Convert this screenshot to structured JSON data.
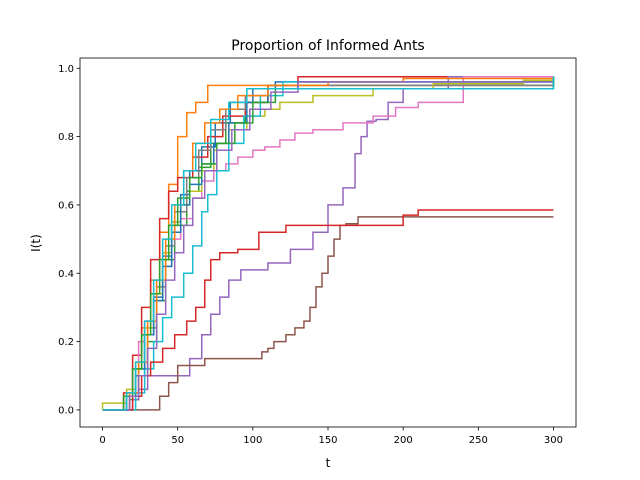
{
  "chart_data": {
    "type": "line",
    "title": "Proportion of Informed Ants",
    "xlabel": "t",
    "ylabel": "I(t)",
    "xlim": [
      -15,
      315
    ],
    "ylim": [
      -0.05,
      1.03
    ],
    "xticks": [
      0,
      50,
      100,
      150,
      200,
      250,
      300
    ],
    "yticks": [
      0.0,
      0.2,
      0.4,
      0.6,
      0.8,
      1.0
    ],
    "xtick_labels": [
      "0",
      "50",
      "100",
      "150",
      "200",
      "250",
      "300"
    ],
    "ytick_labels": [
      "0.0",
      "0.2",
      "0.4",
      "0.6",
      "0.8",
      "1.0"
    ],
    "grid": false,
    "legend": "none",
    "series": [
      {
        "color": "#1f77b4",
        "points": [
          [
            0,
            0
          ],
          [
            12,
            0
          ],
          [
            16,
            0.04
          ],
          [
            22,
            0.1
          ],
          [
            28,
            0.22
          ],
          [
            34,
            0.33
          ],
          [
            40,
            0.45
          ],
          [
            46,
            0.55
          ],
          [
            52,
            0.63
          ],
          [
            58,
            0.7
          ],
          [
            66,
            0.77
          ],
          [
            75,
            0.84
          ],
          [
            85,
            0.9
          ],
          [
            100,
            0.94
          ],
          [
            115,
            0.96
          ],
          [
            300,
            0.975
          ]
        ]
      },
      {
        "color": "#ff7f0e",
        "points": [
          [
            0,
            0
          ],
          [
            10,
            0
          ],
          [
            14,
            0.04
          ],
          [
            20,
            0.12
          ],
          [
            26,
            0.24
          ],
          [
            32,
            0.38
          ],
          [
            38,
            0.52
          ],
          [
            44,
            0.66
          ],
          [
            50,
            0.8
          ],
          [
            56,
            0.87
          ],
          [
            62,
            0.9
          ],
          [
            70,
            0.95
          ],
          [
            300,
            0.975
          ]
        ]
      },
      {
        "color": "#2ca02c",
        "points": [
          [
            0,
            0
          ],
          [
            14,
            0
          ],
          [
            18,
            0.03
          ],
          [
            24,
            0.1
          ],
          [
            30,
            0.2
          ],
          [
            36,
            0.32
          ],
          [
            42,
            0.44
          ],
          [
            48,
            0.54
          ],
          [
            56,
            0.64
          ],
          [
            64,
            0.71
          ],
          [
            72,
            0.78
          ],
          [
            82,
            0.84
          ],
          [
            95,
            0.9
          ],
          [
            110,
            0.95
          ],
          [
            300,
            0.975
          ]
        ]
      },
      {
        "color": "#d62728",
        "points": [
          [
            0,
            0
          ],
          [
            10,
            0
          ],
          [
            14,
            0.05
          ],
          [
            20,
            0.16
          ],
          [
            26,
            0.3
          ],
          [
            32,
            0.44
          ],
          [
            38,
            0.56
          ],
          [
            44,
            0.64
          ],
          [
            50,
            0.68
          ],
          [
            60,
            0.74
          ],
          [
            70,
            0.8
          ],
          [
            80,
            0.86
          ],
          [
            95,
            0.9
          ],
          [
            110,
            0.95
          ],
          [
            130,
            0.975
          ],
          [
            300,
            0.975
          ]
        ]
      },
      {
        "color": "#9467bd",
        "points": [
          [
            0,
            0
          ],
          [
            16,
            0
          ],
          [
            20,
            0.03
          ],
          [
            24,
            0.06
          ],
          [
            30,
            0.1
          ],
          [
            50,
            0.1
          ],
          [
            58,
            0.15
          ],
          [
            66,
            0.22
          ],
          [
            72,
            0.28
          ],
          [
            78,
            0.33
          ],
          [
            84,
            0.38
          ],
          [
            92,
            0.41
          ],
          [
            110,
            0.43
          ],
          [
            125,
            0.47
          ],
          [
            140,
            0.52
          ],
          [
            150,
            0.6
          ],
          [
            160,
            0.65
          ],
          [
            168,
            0.75
          ],
          [
            172,
            0.8
          ],
          [
            176,
            0.845
          ],
          [
            182,
            0.85
          ],
          [
            190,
            0.9
          ],
          [
            200,
            0.94
          ],
          [
            230,
            0.975
          ],
          [
            300,
            0.975
          ]
        ]
      },
      {
        "color": "#8c564b",
        "points": [
          [
            0,
            0
          ],
          [
            22,
            0
          ],
          [
            34,
            0
          ],
          [
            38,
            0.04
          ],
          [
            44,
            0.08
          ],
          [
            50,
            0.13
          ],
          [
            66,
            0.13
          ],
          [
            68,
            0.15
          ],
          [
            100,
            0.15
          ],
          [
            106,
            0.17
          ],
          [
            110,
            0.18
          ],
          [
            114,
            0.2
          ],
          [
            122,
            0.22
          ],
          [
            128,
            0.24
          ],
          [
            134,
            0.26
          ],
          [
            138,
            0.3
          ],
          [
            142,
            0.36
          ],
          [
            146,
            0.4
          ],
          [
            150,
            0.45
          ],
          [
            154,
            0.5
          ],
          [
            158,
            0.54
          ],
          [
            162,
            0.545
          ],
          [
            170,
            0.565
          ],
          [
            300,
            0.565
          ]
        ]
      },
      {
        "color": "#e377c2",
        "points": [
          [
            0,
            0
          ],
          [
            12,
            0
          ],
          [
            16,
            0.05
          ],
          [
            20,
            0.12
          ],
          [
            24,
            0.2
          ],
          [
            28,
            0.26
          ],
          [
            34,
            0.34
          ],
          [
            40,
            0.42
          ],
          [
            46,
            0.5
          ],
          [
            52,
            0.56
          ],
          [
            60,
            0.62
          ],
          [
            66,
            0.67
          ],
          [
            74,
            0.7
          ],
          [
            82,
            0.72
          ],
          [
            90,
            0.74
          ],
          [
            100,
            0.76
          ],
          [
            108,
            0.77
          ],
          [
            118,
            0.79
          ],
          [
            128,
            0.81
          ],
          [
            140,
            0.82
          ],
          [
            160,
            0.84
          ],
          [
            180,
            0.86
          ],
          [
            195,
            0.885
          ],
          [
            210,
            0.9
          ],
          [
            240,
            0.975
          ],
          [
            300,
            0.975
          ]
        ]
      },
      {
        "color": "#7f7f7f",
        "points": [
          [
            0,
            0
          ],
          [
            14,
            0
          ],
          [
            18,
            0.04
          ],
          [
            24,
            0.12
          ],
          [
            30,
            0.24
          ],
          [
            36,
            0.36
          ],
          [
            42,
            0.48
          ],
          [
            48,
            0.58
          ],
          [
            56,
            0.68
          ],
          [
            64,
            0.76
          ],
          [
            72,
            0.82
          ],
          [
            82,
            0.88
          ],
          [
            95,
            0.92
          ],
          [
            110,
            0.95
          ],
          [
            300,
            0.975
          ]
        ]
      },
      {
        "color": "#bcbd22",
        "points": [
          [
            0,
            0
          ],
          [
            0,
            0.02
          ],
          [
            10,
            0.02
          ],
          [
            16,
            0.06
          ],
          [
            22,
            0.14
          ],
          [
            28,
            0.24
          ],
          [
            34,
            0.34
          ],
          [
            40,
            0.46
          ],
          [
            46,
            0.55
          ],
          [
            52,
            0.6
          ],
          [
            58,
            0.64
          ],
          [
            66,
            0.7
          ],
          [
            74,
            0.76
          ],
          [
            84,
            0.82
          ],
          [
            96,
            0.86
          ],
          [
            108,
            0.88
          ],
          [
            118,
            0.9
          ],
          [
            140,
            0.92
          ],
          [
            180,
            0.94
          ],
          [
            220,
            0.955
          ],
          [
            280,
            0.965
          ],
          [
            300,
            0.975
          ]
        ]
      },
      {
        "color": "#17becf",
        "points": [
          [
            0,
            0
          ],
          [
            18,
            0
          ],
          [
            22,
            0.05
          ],
          [
            28,
            0.12
          ],
          [
            34,
            0.2
          ],
          [
            40,
            0.27
          ],
          [
            46,
            0.33
          ],
          [
            54,
            0.4
          ],
          [
            60,
            0.48
          ],
          [
            66,
            0.58
          ],
          [
            70,
            0.63
          ],
          [
            76,
            0.7
          ],
          [
            84,
            0.78
          ],
          [
            94,
            0.86
          ],
          [
            105,
            0.92
          ],
          [
            120,
            0.96
          ],
          [
            300,
            0.975
          ]
        ]
      },
      {
        "color": "#1f77b4",
        "points": [
          [
            0,
            0
          ],
          [
            12,
            0
          ],
          [
            16,
            0.04
          ],
          [
            22,
            0.12
          ],
          [
            28,
            0.22
          ],
          [
            34,
            0.32
          ],
          [
            40,
            0.42
          ],
          [
            46,
            0.52
          ],
          [
            52,
            0.6
          ],
          [
            58,
            0.66
          ],
          [
            66,
            0.72
          ],
          [
            74,
            0.78
          ],
          [
            84,
            0.84
          ],
          [
            96,
            0.9
          ],
          [
            110,
            0.94
          ],
          [
            130,
            0.96
          ],
          [
            300,
            0.975
          ]
        ]
      },
      {
        "color": "#ff7f0e",
        "points": [
          [
            0,
            0
          ],
          [
            14,
            0
          ],
          [
            18,
            0.05
          ],
          [
            24,
            0.14
          ],
          [
            30,
            0.26
          ],
          [
            36,
            0.38
          ],
          [
            42,
            0.5
          ],
          [
            48,
            0.6
          ],
          [
            54,
            0.7
          ],
          [
            60,
            0.78
          ],
          [
            68,
            0.84
          ],
          [
            78,
            0.88
          ],
          [
            90,
            0.92
          ],
          [
            110,
            0.95
          ],
          [
            150,
            0.96
          ],
          [
            200,
            0.97
          ],
          [
            300,
            0.975
          ]
        ]
      },
      {
        "color": "#2ca02c",
        "points": [
          [
            0,
            0
          ],
          [
            10,
            0
          ],
          [
            14,
            0.04
          ],
          [
            20,
            0.12
          ],
          [
            26,
            0.22
          ],
          [
            32,
            0.34
          ],
          [
            38,
            0.44
          ],
          [
            44,
            0.54
          ],
          [
            50,
            0.62
          ],
          [
            58,
            0.68
          ],
          [
            66,
            0.72
          ],
          [
            76,
            0.78
          ],
          [
            88,
            0.84
          ],
          [
            100,
            0.9
          ],
          [
            115,
            0.94
          ],
          [
            300,
            0.975
          ]
        ]
      },
      {
        "color": "#d62728",
        "points": [
          [
            0,
            0
          ],
          [
            16,
            0
          ],
          [
            20,
            0.04
          ],
          [
            26,
            0.1
          ],
          [
            32,
            0.14
          ],
          [
            40,
            0.18
          ],
          [
            48,
            0.22
          ],
          [
            56,
            0.26
          ],
          [
            62,
            0.3
          ],
          [
            68,
            0.38
          ],
          [
            72,
            0.44
          ],
          [
            78,
            0.46
          ],
          [
            90,
            0.47
          ],
          [
            100,
            0.47
          ],
          [
            104,
            0.52
          ],
          [
            118,
            0.52
          ],
          [
            122,
            0.54
          ],
          [
            140,
            0.54
          ],
          [
            200,
            0.57
          ],
          [
            210,
            0.585
          ],
          [
            300,
            0.585
          ]
        ]
      },
      {
        "color": "#9467bd",
        "points": [
          [
            0,
            0
          ],
          [
            14,
            0
          ],
          [
            18,
            0.04
          ],
          [
            24,
            0.1
          ],
          [
            30,
            0.18
          ],
          [
            36,
            0.28
          ],
          [
            42,
            0.38
          ],
          [
            48,
            0.46
          ],
          [
            54,
            0.54
          ],
          [
            60,
            0.62
          ],
          [
            68,
            0.7
          ],
          [
            76,
            0.76
          ],
          [
            86,
            0.82
          ],
          [
            98,
            0.88
          ],
          [
            112,
            0.93
          ],
          [
            130,
            0.96
          ],
          [
            300,
            0.975
          ]
        ]
      },
      {
        "color": "#17becf",
        "points": [
          [
            0,
            0
          ],
          [
            12,
            0
          ],
          [
            16,
            0.05
          ],
          [
            22,
            0.14
          ],
          [
            28,
            0.26
          ],
          [
            34,
            0.38
          ],
          [
            40,
            0.5
          ],
          [
            46,
            0.6
          ],
          [
            54,
            0.7
          ],
          [
            62,
            0.78
          ],
          [
            72,
            0.85
          ],
          [
            84,
            0.9
          ],
          [
            96,
            0.94
          ],
          [
            300,
            0.975
          ]
        ]
      }
    ]
  }
}
